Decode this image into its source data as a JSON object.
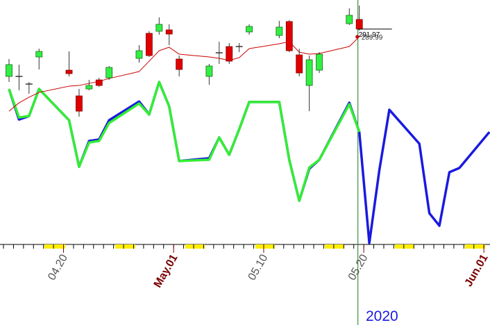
{
  "chart_data": {
    "type": "candlestick",
    "x": [
      "04.14",
      "04.15",
      "04.16",
      "04.17",
      "04.20",
      "04.21",
      "04.22",
      "04.23",
      "04.24",
      "04.27",
      "04.28",
      "04.29",
      "04.30",
      "05.01",
      "05.04",
      "05.05",
      "05.06",
      "05.07",
      "05.08",
      "05.11",
      "05.12",
      "05.13",
      "05.14",
      "05.15",
      "05.18",
      "05.19",
      "05.20",
      "05.21",
      "05.22",
      "05.25",
      "05.26",
      "05.27",
      "05.28",
      "05.29",
      "06.01"
    ],
    "open": [
      279.7,
      279.7,
      277.72,
      284.74,
      281.32,
      274.66,
      276.46,
      278.8,
      279.34,
      284.38,
      290.86,
      291.4,
      291.76,
      284.2,
      279.7,
      285.82,
      287.44,
      287.44,
      291.22,
      290.32,
      293.92,
      285.28,
      277.36,
      281.32,
      293.38,
      294.46,
      null,
      null,
      null,
      null,
      null,
      null,
      null,
      null,
      null
    ],
    "high": [
      284.2,
      282.76,
      278.26,
      286.9,
      286.18,
      276.46,
      278.8,
      279.34,
      282.4,
      287.8,
      291.4,
      295.0,
      293.2,
      285.1,
      282.94,
      288.7,
      288.34,
      288.34,
      293.2,
      294.1,
      294.28,
      286.9,
      285.1,
      286.0,
      297.34,
      298.06,
      null,
      null,
      null,
      null,
      null,
      null,
      null,
      null,
      null
    ],
    "low": [
      278.26,
      276.1,
      275.2,
      281.5,
      279.7,
      269.26,
      276.1,
      277.0,
      278.8,
      283.3,
      284.74,
      290.5,
      287.8,
      279.7,
      277.54,
      282.94,
      282.94,
      286.0,
      290.5,
      289.6,
      286.0,
      279.7,
      270.7,
      280.6,
      293.02,
      291.58,
      null,
      null,
      null,
      null,
      null,
      null,
      null,
      null,
      null
    ],
    "close": [
      282.76,
      279.7,
      277.72,
      286.18,
      280.42,
      270.7,
      277.36,
      277.36,
      282.04,
      286.36,
      285.1,
      293.2,
      290.68,
      281.5,
      282.4,
      285.82,
      283.66,
      287.44,
      292.66,
      292.48,
      286.36,
      280.6,
      284.02,
      285.46,
      295.54,
      291.97,
      null,
      null,
      null,
      null,
      null,
      null,
      null,
      null,
      null
    ],
    "up_color": "#33ee44",
    "down_color": "#e00000",
    "overlays": [
      {
        "color": "#cc0000",
        "values": [
          270.7,
          272.86,
          274.3,
          275.56,
          277.18,
          277.36,
          277.9,
          278.44,
          279.16,
          280.96,
          283.66,
          286.36,
          287.26,
          285.46,
          284.74,
          284.38,
          283.84,
          284.56,
          286.9,
          288.16,
          288.7,
          286.0,
          285.46,
          285.64,
          287.44,
          289.99,
          null,
          null,
          null,
          null,
          null,
          null,
          null,
          null,
          null
        ]
      }
    ],
    "indicators": [
      {
        "color": "#1a1adf",
        "axis": "y2",
        "values": [
          64.4,
          52.2,
          53.6,
          64.4,
          51.9,
          33.3,
          43.6,
          44.2,
          51.9,
          59.4,
          54.2,
          67.2,
          57.5,
          35.6,
          36.7,
          45.0,
          38.1,
          48.3,
          59.2,
          59.2,
          36.1,
          19.7,
          32.5,
          36.1,
          58.9,
          47.2,
          2.8,
          31.9,
          56.1,
          42.5,
          14.7,
          9.7,
          31.1,
          32.8,
          47.2
        ]
      },
      {
        "color": "#33ee33",
        "axis": "y2",
        "values": [
          64.4,
          53.0,
          53.6,
          64.4,
          51.9,
          33.3,
          43.0,
          43.6,
          50.8,
          58.6,
          54.2,
          67.2,
          57.5,
          35.6,
          36.1,
          45.0,
          38.1,
          48.3,
          59.2,
          59.2,
          36.1,
          19.7,
          33.0,
          36.1,
          58.3,
          47.2,
          null,
          null,
          null,
          null,
          null,
          null,
          null,
          null,
          null
        ]
      }
    ],
    "ylim": [
      215.3,
      299.5
    ],
    "y2lim": [
      -30,
      100
    ],
    "xticks": [
      {
        "value": "04.20",
        "label": "04.20"
      },
      {
        "value": "05.01",
        "label": "May.01"
      },
      {
        "value": "05.10",
        "label": "05.10"
      },
      {
        "value": "05.20",
        "label": "05.20"
      },
      {
        "value": "06.01",
        "label": "Jun.01"
      }
    ],
    "year_label": "2020"
  }
}
